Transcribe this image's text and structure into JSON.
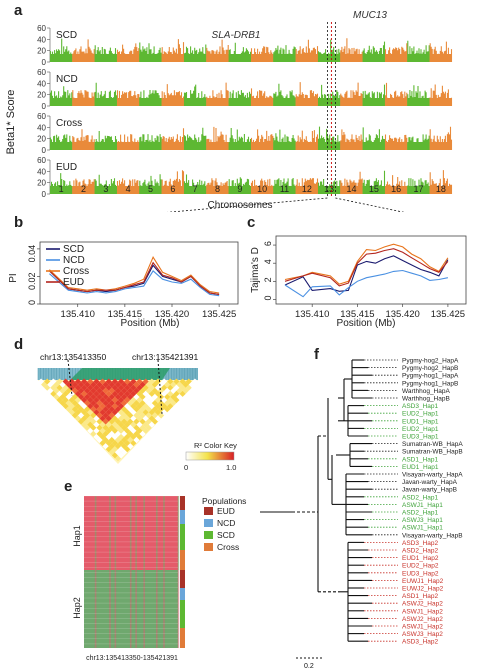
{
  "panel_labels": {
    "a": "a",
    "b": "b",
    "c": "c",
    "d": "d",
    "e": "e",
    "f": "f"
  },
  "panel_a": {
    "ylabel": "Beta1* Score",
    "xlabel": "Chromosomes",
    "gene_left": "SLA-DRB1",
    "gene_right": "MUC13",
    "yticks": [
      "60",
      "40",
      "20",
      "0"
    ],
    "tracks": [
      "SCD",
      "NCD",
      "Cross",
      "EUD"
    ],
    "chromosomes": [
      "1",
      "2",
      "3",
      "4",
      "5",
      "6",
      "7",
      "8",
      "9",
      "10",
      "11",
      "12",
      "13",
      "14",
      "15",
      "16",
      "17",
      "18"
    ],
    "colors": {
      "odd": "#5db832",
      "even": "#e98a3a",
      "marker_red": "#cc0000"
    }
  },
  "chart_data": [
    {
      "type": "line",
      "panel": "b",
      "ylabel": "PI",
      "xlabel": "Position (Mb)",
      "xticks": [
        "135.410",
        "135.415",
        "135.420",
        "135.425"
      ],
      "yticks": [
        "0.04",
        "0.02",
        "0"
      ],
      "xlim": [
        135.406,
        135.427
      ],
      "ylim": [
        0,
        0.045
      ],
      "x": [
        135.407,
        135.409,
        135.41,
        135.411,
        135.412,
        135.413,
        135.414,
        135.415,
        135.416,
        135.417,
        135.418,
        135.419,
        135.42,
        135.421,
        135.422,
        135.423,
        135.424,
        135.425
      ],
      "series": [
        {
          "name": "SCD",
          "color": "#1a1a6e",
          "values": [
            0.024,
            0.011,
            0.01,
            0.009,
            0.01,
            0.009,
            0.01,
            0.012,
            0.013,
            0.015,
            0.028,
            0.02,
            0.018,
            0.016,
            0.02,
            0.013,
            0.008,
            0.007
          ]
        },
        {
          "name": "NCD",
          "color": "#4a90e2",
          "values": [
            0.022,
            0.01,
            0.009,
            0.008,
            0.009,
            0.008,
            0.009,
            0.011,
            0.012,
            0.013,
            0.024,
            0.018,
            0.016,
            0.015,
            0.018,
            0.012,
            0.007,
            0.006
          ]
        },
        {
          "name": "Cross",
          "color": "#e8741c",
          "values": [
            0.025,
            0.012,
            0.011,
            0.01,
            0.011,
            0.01,
            0.011,
            0.013,
            0.015,
            0.018,
            0.034,
            0.023,
            0.02,
            0.017,
            0.021,
            0.014,
            0.009,
            0.008
          ]
        },
        {
          "name": "EUD",
          "color": "#b3261e",
          "values": [
            0.024,
            0.011,
            0.01,
            0.009,
            0.01,
            0.01,
            0.01,
            0.012,
            0.014,
            0.016,
            0.03,
            0.021,
            0.019,
            0.016,
            0.02,
            0.013,
            0.008,
            0.007
          ]
        }
      ]
    },
    {
      "type": "line",
      "panel": "c",
      "ylabel": "Tajima's D",
      "xlabel": "Position (Mb)",
      "xticks": [
        "135.410",
        "135.415",
        "135.420",
        "135.425"
      ],
      "yticks": [
        "6",
        "4",
        "2",
        "0"
      ],
      "xlim": [
        135.406,
        135.427
      ],
      "ylim": [
        -0.5,
        7
      ],
      "x": [
        135.407,
        135.409,
        135.41,
        135.412,
        135.413,
        135.414,
        135.415,
        135.416,
        135.417,
        135.418,
        135.419,
        135.42,
        135.421,
        135.422,
        135.423,
        135.424,
        135.425
      ],
      "series": [
        {
          "name": "SCD",
          "color": "#1a1a6e",
          "values": [
            1.6,
            2.5,
            1.0,
            1.2,
            0.9,
            1.0,
            3.8,
            4.2,
            4.0,
            4.5,
            4.8,
            4.3,
            3.8,
            3.3,
            3.0,
            2.6,
            4.4
          ]
        },
        {
          "name": "NCD",
          "color": "#4a90e2",
          "values": [
            1.6,
            0.3,
            1.4,
            1.5,
            0.5,
            1.3,
            2.0,
            2.4,
            2.6,
            2.8,
            3.1,
            3.2,
            2.9,
            2.6,
            2.1,
            2.2,
            2.4
          ]
        },
        {
          "name": "Cross",
          "color": "#e8741c",
          "values": [
            2.2,
            2.6,
            3.0,
            2.6,
            1.7,
            2.0,
            4.2,
            5.5,
            5.4,
            5.8,
            6.1,
            5.8,
            5.0,
            4.5,
            3.6,
            3.1,
            4.6
          ]
        },
        {
          "name": "EUD",
          "color": "#b3261e",
          "values": [
            2.0,
            2.6,
            2.9,
            2.4,
            1.5,
            1.8,
            4.0,
            5.0,
            5.1,
            5.4,
            5.6,
            5.2,
            4.6,
            4.0,
            3.4,
            3.0,
            4.2
          ]
        }
      ]
    }
  ],
  "panel_d": {
    "left_pos": "chr13:135413350",
    "right_pos": "chr13:135421391",
    "key_title": "R² Color Key",
    "key_min": "0",
    "key_max": "1.0"
  },
  "panel_e": {
    "legend_title": "Populations",
    "legend": [
      {
        "label": "EUD",
        "color": "#a83228"
      },
      {
        "label": "NCD",
        "color": "#6aa6d9"
      },
      {
        "label": "SCD",
        "color": "#5db832"
      },
      {
        "label": "Cross",
        "color": "#e07b39"
      }
    ],
    "hap1": "Hap1",
    "hap2": "Hap2",
    "xlabel": "chr13:135413350-135421391",
    "colors": {
      "hap1": "#e45b6a",
      "hap2": "#6fa86e"
    }
  },
  "panel_f": {
    "scale": "0.2",
    "leaves": [
      {
        "label": "Pygmy-hog2_HapA",
        "color": "#222222"
      },
      {
        "label": "Pygmy-hog2_HapB",
        "color": "#222222"
      },
      {
        "label": "Pygmy-hog1_HapA",
        "color": "#222222"
      },
      {
        "label": "Pygmy-hog1_HapB",
        "color": "#222222"
      },
      {
        "label": "Warthhog_HapA",
        "color": "#222222"
      },
      {
        "label": "Warthhog_HapB",
        "color": "#222222"
      },
      {
        "label": "ASD3_Hap1",
        "color": "#3fa33a"
      },
      {
        "label": "EUD2_Hap1",
        "color": "#3fa33a"
      },
      {
        "label": "EUD1_Hap1",
        "color": "#3fa33a"
      },
      {
        "label": "EUD2_Hap1",
        "color": "#3fa33a"
      },
      {
        "label": "EUD3_Hap1",
        "color": "#3fa33a"
      },
      {
        "label": "Sumatran-WB_HapA",
        "color": "#222222"
      },
      {
        "label": "Sumatran-WB_HapB",
        "color": "#222222"
      },
      {
        "label": "ASD1_Hap1",
        "color": "#3fa33a"
      },
      {
        "label": "EUD1_Hap1",
        "color": "#3fa33a"
      },
      {
        "label": "Visayan-warty_HapA",
        "color": "#222222"
      },
      {
        "label": "Javan-warty_HapA",
        "color": "#222222"
      },
      {
        "label": "Javan-warty_HapB",
        "color": "#222222"
      },
      {
        "label": "ASD2_Hap1",
        "color": "#3fa33a"
      },
      {
        "label": "ASWJ1_Hap1",
        "color": "#3fa33a"
      },
      {
        "label": "ASD2_Hap1",
        "color": "#3fa33a"
      },
      {
        "label": "ASWJ3_Hap1",
        "color": "#3fa33a"
      },
      {
        "label": "ASWJ1_Hap1",
        "color": "#3fa33a"
      },
      {
        "label": "Visayan-warty_HapB",
        "color": "#222222"
      },
      {
        "label": "ASD3_Hap2",
        "color": "#c8322a"
      },
      {
        "label": "ASD2_Hap2",
        "color": "#c8322a"
      },
      {
        "label": "EUD1_Hap2",
        "color": "#c8322a"
      },
      {
        "label": "EUD2_Hap2",
        "color": "#c8322a"
      },
      {
        "label": "EUD3_Hap2",
        "color": "#c8322a"
      },
      {
        "label": "EUWJ1_Hap2",
        "color": "#c8322a"
      },
      {
        "label": "EUWJ2_Hap2",
        "color": "#c8322a"
      },
      {
        "label": "ASD1_Hap2",
        "color": "#c8322a"
      },
      {
        "label": "ASWJ2_Hap2",
        "color": "#c8322a"
      },
      {
        "label": "ASWJ1_Hap2",
        "color": "#c8322a"
      },
      {
        "label": "ASWJ2_Hap2",
        "color": "#c8322a"
      },
      {
        "label": "ASWJ1_Hap2",
        "color": "#c8322a"
      },
      {
        "label": "ASWJ3_Hap2",
        "color": "#c8322a"
      },
      {
        "label": "ASD3_Hap2",
        "color": "#c8322a"
      }
    ]
  }
}
